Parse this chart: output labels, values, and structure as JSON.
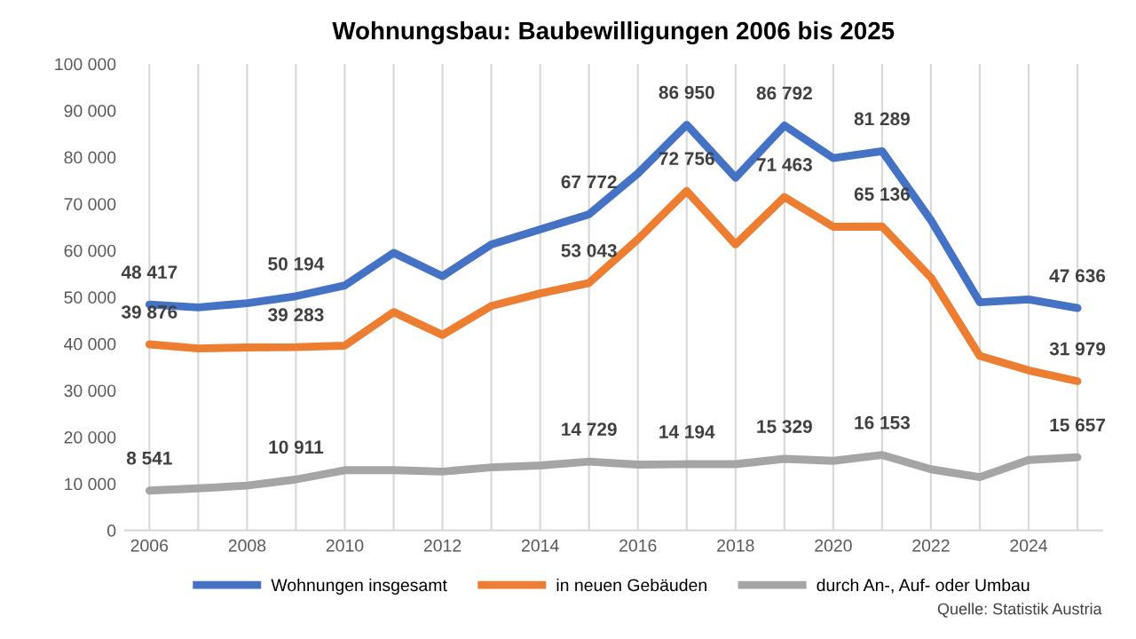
{
  "chart_data": {
    "type": "line",
    "title": "Wohnungsbau: Baubewilligungen 2006 bis 2025",
    "x": [
      2006,
      2007,
      2008,
      2009,
      2010,
      2011,
      2012,
      2013,
      2014,
      2015,
      2016,
      2017,
      2018,
      2019,
      2020,
      2021,
      2022,
      2023,
      2024,
      2025
    ],
    "series": [
      {
        "name": "Wohnungen insgesamt",
        "color": "#4472c4",
        "values": [
          48417,
          47800,
          48700,
          50194,
          52500,
          59500,
          54500,
          61300,
          64500,
          67772,
          76500,
          86950,
          75600,
          86792,
          79800,
          81289,
          66500,
          48900,
          49500,
          47636
        ],
        "value_labels": [
          "48 417",
          null,
          null,
          "50 194",
          null,
          null,
          null,
          null,
          null,
          "67 772",
          null,
          "86 950",
          null,
          "86 792",
          null,
          "81 289",
          null,
          null,
          null,
          "47 636"
        ]
      },
      {
        "name": "in neuen Gebäuden",
        "color": "#ed7d31",
        "values": [
          39876,
          39000,
          39200,
          39283,
          39600,
          46800,
          41900,
          48100,
          50800,
          53043,
          62400,
          72756,
          61300,
          71463,
          65100,
          65136,
          54200,
          37400,
          34300,
          31979
        ],
        "value_labels": [
          "39 876",
          null,
          null,
          "39 283",
          null,
          null,
          null,
          null,
          null,
          "53 043",
          null,
          "72 756",
          null,
          "71 463",
          null,
          "65 136",
          null,
          null,
          null,
          "31 979"
        ]
      },
      {
        "name": "durch An-, Auf- oder Umbau",
        "color": "#a5a5a5",
        "values": [
          8541,
          9000,
          9600,
          10911,
          12900,
          12900,
          12600,
          13500,
          13900,
          14729,
          14100,
          14194,
          14200,
          15329,
          14900,
          16153,
          13100,
          11400,
          15100,
          15657
        ],
        "value_labels": [
          "8 541",
          null,
          null,
          "10 911",
          null,
          null,
          null,
          null,
          null,
          "14 729",
          null,
          "14 194",
          null,
          "15 329",
          null,
          "16 153",
          null,
          null,
          null,
          "15 657"
        ]
      }
    ],
    "xlim": [
      2005.5,
      2025.5
    ],
    "xticks": [
      2006,
      {
        "value": 2007,
        "label": null
      },
      2008,
      {
        "value": 2009,
        "label": null
      },
      2010,
      {
        "value": 2011,
        "label": null
      },
      2012,
      {
        "value": 2013,
        "label": null
      },
      2014,
      {
        "value": 2015,
        "label": null
      },
      2016,
      {
        "value": 2017,
        "label": null
      },
      2018,
      {
        "value": 2019,
        "label": null
      },
      2020,
      {
        "value": 2021,
        "label": null
      },
      2022,
      {
        "value": 2023,
        "label": null
      },
      2024,
      {
        "value": 2025,
        "label": null
      }
    ],
    "ylim": [
      0,
      100000
    ],
    "yticks": [
      0,
      {
        "value": 10000,
        "label": "10 000"
      },
      {
        "value": 20000,
        "label": "20 000"
      },
      {
        "value": 30000,
        "label": "30 000"
      },
      {
        "value": 40000,
        "label": "40 000"
      },
      {
        "value": 50000,
        "label": "50 000"
      },
      {
        "value": 60000,
        "label": "60 000"
      },
      {
        "value": 70000,
        "label": "70 000"
      },
      {
        "value": 80000,
        "label": "80 000"
      },
      {
        "value": 90000,
        "label": "90 000"
      },
      {
        "value": 100000,
        "label": "100 000"
      }
    ],
    "grid": "x",
    "legend": "bottom",
    "marker": "none",
    "line_style": "solid",
    "annotations": [
      "Quelle: Statistik Austria"
    ]
  }
}
